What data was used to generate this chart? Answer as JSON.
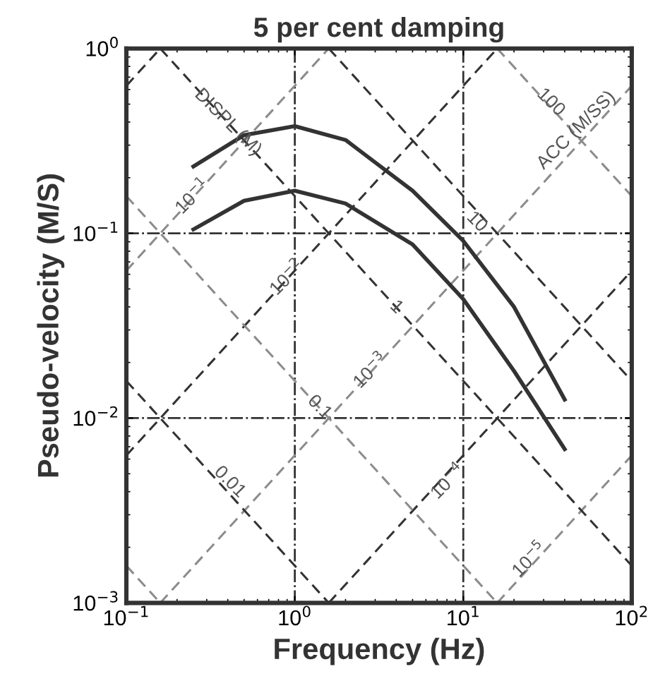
{
  "chart_data": {
    "type": "line",
    "title": "5 per cent damping",
    "xlabel": "Frequency (Hz)",
    "ylabel": "Pseudo-velocity (M/S)",
    "log": "xy",
    "grid": true,
    "legend": false,
    "marker": "none",
    "xlim": [
      0.1,
      100
    ],
    "ylim": [
      0.001,
      1
    ],
    "xticks": [
      {
        "value": 0.1,
        "label": "10$^{−1}$"
      },
      {
        "value": 1,
        "label": "10$^{0}$"
      },
      {
        "value": 10,
        "label": "10$^{1}$"
      },
      {
        "value": 100,
        "label": "10$^{2}$"
      }
    ],
    "yticks": [
      {
        "value": 0.001,
        "label": "10$^{−3}$"
      },
      {
        "value": 0.01,
        "label": "10$^{−2}$"
      },
      {
        "value": 0.1,
        "label": "10$^{−1}$"
      },
      {
        "value": 1,
        "label": "10$^{0}$"
      }
    ],
    "series": [
      {
        "color": "#333333",
        "line_style": "solid",
        "x": [
          0.25,
          0.5,
          1,
          2,
          5,
          10,
          20,
          40
        ],
        "values": [
          0.23,
          0.34,
          0.38,
          0.32,
          0.17,
          0.091,
          0.04,
          0.0126
        ]
      },
      {
        "color": "#333333",
        "line_style": "solid",
        "x": [
          0.25,
          0.5,
          1,
          2,
          5,
          10,
          20,
          40
        ],
        "values": [
          0.105,
          0.15,
          0.17,
          0.145,
          0.087,
          0.044,
          0.018,
          0.0068
        ]
      },
      {
        "color": "#333333",
        "line_style": "dashed",
        "x": [
          0.1,
          0.159
        ],
        "values": [
          0.628,
          1
        ]
      },
      {
        "color": "#8c8c8c",
        "line_style": "dashed",
        "x": [
          0.1,
          1.59
        ],
        "values": [
          0.0628,
          1
        ]
      },
      {
        "color": "#333333",
        "line_style": "dashed",
        "x": [
          0.1,
          15.9
        ],
        "values": [
          0.00628,
          1
        ]
      },
      {
        "color": "#8c8c8c",
        "line_style": "dashed",
        "x": [
          0.159,
          100
        ],
        "values": [
          0.001,
          0.628
        ]
      },
      {
        "color": "#333333",
        "line_style": "dashed",
        "x": [
          1.59,
          100
        ],
        "values": [
          0.001,
          0.0628
        ]
      },
      {
        "color": "#8c8c8c",
        "line_style": "dashed",
        "x": [
          15.9,
          100
        ],
        "values": [
          0.001,
          0.00628
        ]
      },
      {
        "color": "#8c8c8c",
        "line_style": "dashed",
        "x": [
          15.9,
          100
        ],
        "values": [
          1,
          0.159
        ]
      },
      {
        "color": "#333333",
        "line_style": "dashed",
        "x": [
          1.59,
          100
        ],
        "values": [
          1,
          0.0159
        ]
      },
      {
        "color": "#333333",
        "line_style": "dashed",
        "x": [
          0.159,
          100
        ],
        "values": [
          1,
          0.00159
        ]
      },
      {
        "color": "#8c8c8c",
        "line_style": "dashed",
        "x": [
          0.1,
          15.9
        ],
        "values": [
          0.159,
          0.001
        ]
      },
      {
        "color": "#333333",
        "line_style": "dashed",
        "x": [
          0.1,
          1.59
        ],
        "values": [
          0.0159,
          0.001
        ]
      },
      {
        "color": "#8c8c8c",
        "line_style": "dashed",
        "x": [
          0.1,
          0.159
        ],
        "values": [
          0.00159,
          0.001
        ]
      }
    ],
    "annotations": [
      {
        "text": "10$^{−1}$",
        "x": 0.25,
        "y": 0.157
      },
      {
        "text": "10$^{−2}$",
        "x": 0.91,
        "y": 0.057
      },
      {
        "text": "10$^{−3}$",
        "x": 2.85,
        "y": 0.0179
      },
      {
        "text": "10$^{−4}$",
        "x": 8.2,
        "y": 0.0045
      },
      {
        "text": "10$^{−5}$",
        "x": 25,
        "y": 0.0017
      },
      {
        "text": "100",
        "x": 33,
        "y": 0.51
      },
      {
        "text": "10",
        "x": 12,
        "y": 0.115
      },
      {
        "text": "1",
        "x": 4.0,
        "y": 0.0398
      },
      {
        "text": "0.1",
        "x": 1.4,
        "y": 0.0114
      },
      {
        "text": "0.01",
        "x": 0.41,
        "y": 0.0045
      },
      {
        "text": "DISPL (M)",
        "x": 0.4,
        "y": 0.398
      },
      {
        "text": "ACC (M/SS)",
        "x": 47,
        "y": 0.36
      }
    ]
  }
}
